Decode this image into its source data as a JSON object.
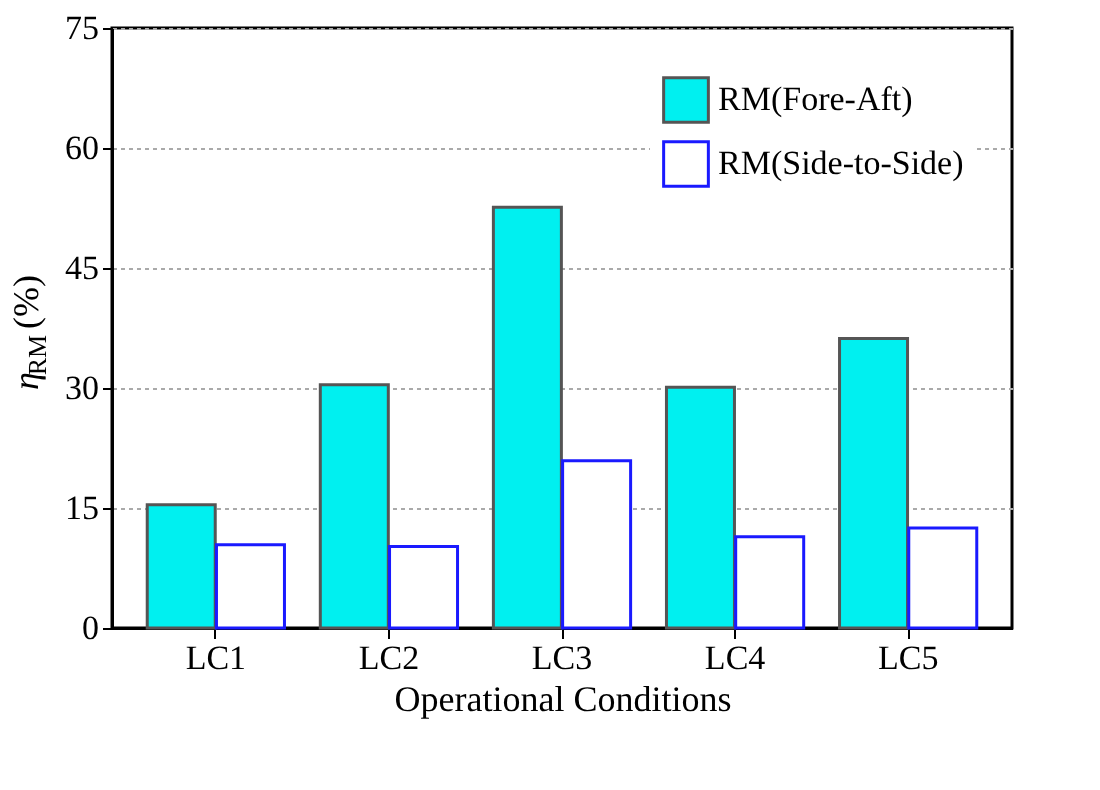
{
  "chart_data": {
    "type": "bar",
    "xlabel": "Operational Conditions",
    "ylabel": "η$_{RM}$ (%)",
    "categories": [
      "LC1",
      "LC2",
      "LC3",
      "LC4",
      "LC5"
    ],
    "series": [
      {
        "name": "RM(Fore-Aft)",
        "color": "#00f0f0",
        "values": [
          15.4,
          30.4,
          52.6,
          30.1,
          36.2
        ]
      },
      {
        "name": "RM(Side-to-Side)",
        "color": "#1a1aff",
        "values": [
          10.4,
          10.2,
          20.9,
          11.4,
          12.5
        ]
      }
    ],
    "ylim": [
      0,
      75
    ],
    "yticks": [
      0,
      15,
      30,
      45,
      60,
      75
    ],
    "grid": "y",
    "legend": "top right"
  }
}
